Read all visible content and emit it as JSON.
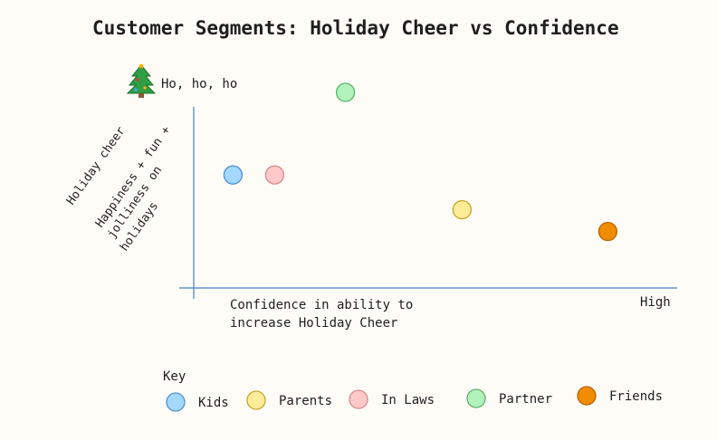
{
  "chart_data": {
    "type": "scatter",
    "title": "Customer Segments: Holiday Cheer vs Confidence",
    "top_annotation": "Ho, ho, ho",
    "top_annotation_icon": "christmas-tree-icon",
    "ylabel": "Holiday cheer",
    "ylabel_detail": [
      "Happiness + fun +",
      "jolliness on",
      "holidays"
    ],
    "xlabel": [
      "Confidence in ability to",
      "increase Holiday Cheer"
    ],
    "x_high_label": "High",
    "xlim": [
      0,
      10
    ],
    "ylim": [
      0,
      10
    ],
    "grid": false,
    "series": [
      {
        "name": "Kids",
        "color": "#a5d8ff",
        "stroke": "#4f8fd6",
        "x": 0.9,
        "y": 5.2
      },
      {
        "name": "Parents",
        "color": "#ffec99",
        "stroke": "#c9a227",
        "x": 6.4,
        "y": 3.6
      },
      {
        "name": "In Laws",
        "color": "#ffc9c9",
        "stroke": "#d98a8a",
        "x": 1.9,
        "y": 5.2
      },
      {
        "name": "Partner",
        "color": "#b2f2bb",
        "stroke": "#58b368",
        "x": 3.6,
        "y": 9.0
      },
      {
        "name": "Friends",
        "color": "#f08c00",
        "stroke": "#b86400",
        "x": 9.9,
        "y": 2.6
      }
    ],
    "legend_title": "Key",
    "legend_position": "bottom"
  }
}
